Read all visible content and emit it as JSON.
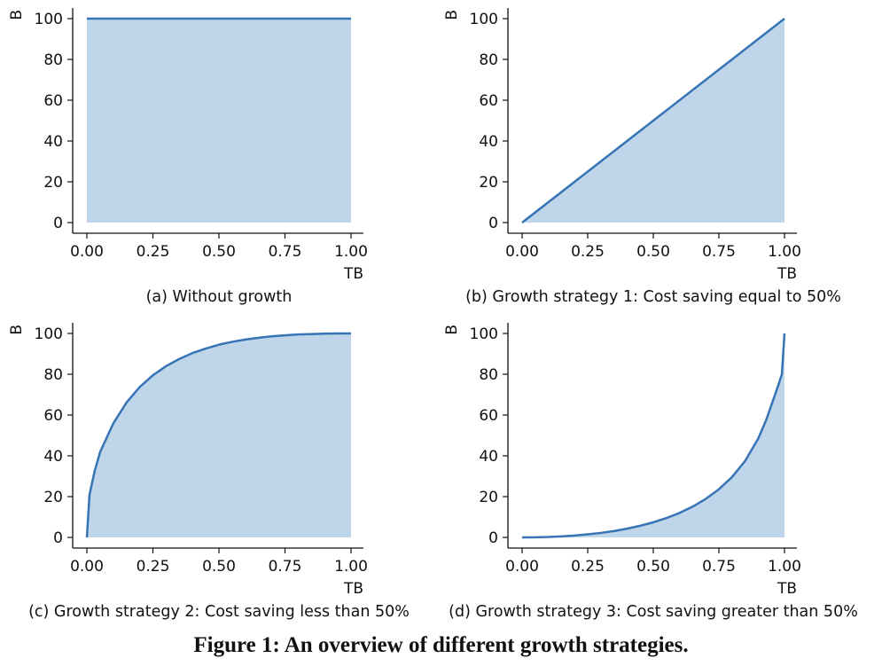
{
  "figure_caption": "Figure 1: An overview of different growth strategies.",
  "colors": {
    "line": "#3674b5",
    "fill": "#bfd6ea",
    "axis": "#111111"
  },
  "chart_data": [
    {
      "type": "area",
      "caption": "(a) Without growth",
      "xlabel": "TB",
      "ylabel": "B",
      "xlim": [
        0,
        1
      ],
      "ylim": [
        0,
        100
      ],
      "xticks": [
        "0.00",
        "0.25",
        "0.50",
        "0.75",
        "1.00"
      ],
      "yticks": [
        "0",
        "20",
        "40",
        "60",
        "80",
        "100"
      ],
      "x": [
        0,
        0.25,
        0.5,
        0.75,
        1.0
      ],
      "y": [
        100,
        100,
        100,
        100,
        100
      ]
    },
    {
      "type": "area",
      "caption": "(b) Growth strategy 1: Cost saving equal to 50%",
      "xlabel": "TB",
      "ylabel": "B",
      "xlim": [
        0,
        1
      ],
      "ylim": [
        0,
        100
      ],
      "xticks": [
        "0.00",
        "0.25",
        "0.50",
        "0.75",
        "1.00"
      ],
      "yticks": [
        "0",
        "20",
        "40",
        "60",
        "80",
        "100"
      ],
      "x": [
        0,
        0.25,
        0.5,
        0.75,
        1.0
      ],
      "y": [
        0,
        25,
        50,
        75,
        100
      ]
    },
    {
      "type": "area",
      "caption": "(c) Growth strategy 2: Cost saving less than 50%",
      "xlabel": "TB",
      "ylabel": "B",
      "xlim": [
        0,
        1
      ],
      "ylim": [
        0,
        100
      ],
      "xticks": [
        "0.00",
        "0.25",
        "0.50",
        "0.75",
        "1.00"
      ],
      "yticks": [
        "0",
        "20",
        "40",
        "60",
        "80",
        "100"
      ],
      "x": [
        0,
        0.01,
        0.03,
        0.05,
        0.1,
        0.15,
        0.2,
        0.25,
        0.3,
        0.35,
        0.4,
        0.45,
        0.5,
        0.55,
        0.6,
        0.65,
        0.7,
        0.75,
        0.8,
        0.85,
        0.9,
        0.95,
        1.0
      ],
      "y": [
        0,
        21,
        32.8,
        41.8,
        55.9,
        66.1,
        73.7,
        79.5,
        84.0,
        87.5,
        90.4,
        92.6,
        94.5,
        95.9,
        97.0,
        97.9,
        98.6,
        99.1,
        99.5,
        99.7,
        99.9,
        100.0,
        100.0
      ]
    },
    {
      "type": "area",
      "caption": "(d) Growth strategy 3: Cost saving greater than 50%",
      "xlabel": "TB",
      "ylabel": "B",
      "xlim": [
        0,
        1
      ],
      "ylim": [
        0,
        100
      ],
      "xticks": [
        "0.00",
        "0.25",
        "0.50",
        "0.75",
        "1.00"
      ],
      "yticks": [
        "0",
        "20",
        "40",
        "60",
        "80",
        "100"
      ],
      "x": [
        0,
        0.05,
        0.1,
        0.15,
        0.2,
        0.25,
        0.3,
        0.35,
        0.4,
        0.45,
        0.5,
        0.55,
        0.6,
        0.65,
        0.7,
        0.75,
        0.8,
        0.85,
        0.9,
        0.93,
        0.96,
        0.98,
        0.99,
        1.0
      ],
      "y": [
        0,
        0.05,
        0.2,
        0.5,
        0.9,
        1.5,
        2.2,
        3.1,
        4.3,
        5.7,
        7.4,
        9.5,
        12.0,
        15.1,
        18.9,
        23.6,
        29.6,
        37.5,
        48.5,
        57.5,
        68.5,
        76.0,
        80.0,
        100.0
      ]
    }
  ]
}
